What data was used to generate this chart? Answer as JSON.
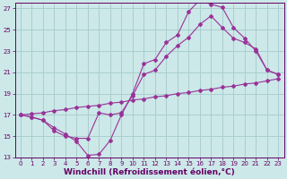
{
  "xlabel": "Windchill (Refroidissement éolien,°C)",
  "xlim": [
    -0.5,
    23.5
  ],
  "ylim": [
    13,
    27.5
  ],
  "xticks": [
    0,
    1,
    2,
    3,
    4,
    5,
    6,
    7,
    8,
    9,
    10,
    11,
    12,
    13,
    14,
    15,
    16,
    17,
    18,
    19,
    20,
    21,
    22,
    23
  ],
  "yticks": [
    13,
    15,
    17,
    19,
    21,
    23,
    25,
    27
  ],
  "background_color": "#cce8e8",
  "grid_color": "#aacece",
  "line_color": "#993399",
  "line1_x": [
    0,
    1,
    2,
    3,
    4,
    5,
    6,
    7,
    8,
    9,
    10,
    11,
    12,
    13,
    14,
    15,
    16,
    17,
    18,
    19,
    20,
    21,
    22,
    23
  ],
  "line1_y": [
    17.0,
    16.8,
    16.5,
    15.8,
    15.2,
    14.5,
    13.2,
    13.3,
    14.6,
    17.0,
    19.0,
    21.8,
    22.2,
    23.8,
    24.5,
    26.7,
    27.8,
    27.4,
    27.1,
    25.2,
    24.2,
    23.0,
    21.2,
    20.8
  ],
  "line2_x": [
    0,
    1,
    2,
    3,
    4,
    5,
    6,
    7,
    8,
    9,
    10,
    11,
    12,
    13,
    14,
    15,
    16,
    17,
    18,
    19,
    20,
    21,
    22,
    23
  ],
  "line2_y": [
    17.0,
    17.1,
    17.2,
    17.4,
    17.5,
    17.7,
    17.8,
    17.9,
    18.1,
    18.2,
    18.4,
    18.5,
    18.7,
    18.8,
    19.0,
    19.1,
    19.3,
    19.4,
    19.6,
    19.7,
    19.9,
    20.0,
    20.2,
    20.4
  ],
  "line3_x": [
    0,
    1,
    2,
    3,
    4,
    5,
    6,
    7,
    8,
    9,
    10,
    11,
    12,
    13,
    14,
    15,
    16,
    17,
    18,
    19,
    20,
    21,
    22,
    23
  ],
  "line3_y": [
    17.0,
    16.8,
    16.5,
    15.5,
    15.0,
    14.8,
    14.8,
    17.2,
    17.0,
    17.2,
    18.8,
    20.8,
    21.2,
    22.5,
    23.5,
    24.3,
    25.5,
    26.3,
    25.2,
    24.2,
    23.8,
    23.2,
    21.2,
    20.8
  ],
  "font_color": "#660066",
  "tick_fontsize": 5.0,
  "xlabel_fontsize": 6.5
}
